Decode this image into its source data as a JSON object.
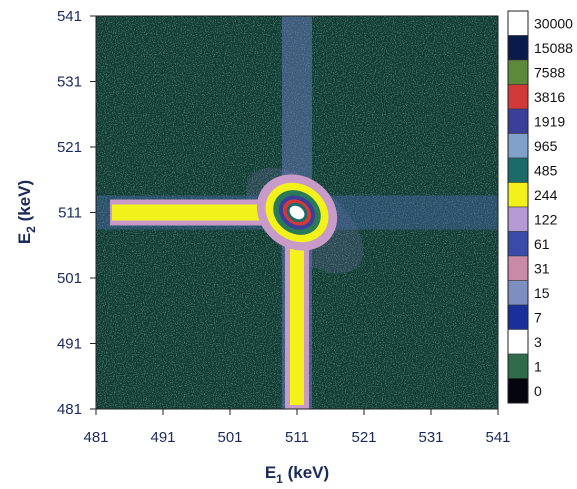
{
  "chart_data": {
    "type": "heatmap",
    "title": "",
    "xlabel": {
      "main": "E",
      "sub": "1",
      "unit": " (keV)"
    },
    "ylabel": {
      "main": "E",
      "sub": "2",
      "unit": " (keV)"
    },
    "xlim": [
      481,
      541
    ],
    "ylim": [
      481,
      541
    ],
    "x_ticks": [
      481,
      491,
      501,
      511,
      521,
      531,
      541
    ],
    "y_ticks": [
      481,
      491,
      501,
      511,
      521,
      531,
      541
    ],
    "grid": false,
    "colorbar": {
      "placement": "right",
      "levels": [
        "30000",
        "15088",
        "7588",
        "3816",
        "1919",
        "965",
        "485",
        "244",
        "122",
        "61",
        "31",
        "15",
        "7",
        "3",
        "1",
        "0"
      ],
      "colors": [
        "#ffffff",
        "#0a1a4a",
        "#5d8a3a",
        "#d23a3a",
        "#3b3f9a",
        "#7fa0c8",
        "#1a6b6a",
        "#f2f21a",
        "#b59ad6",
        "#3a4aa8",
        "#c98aa8",
        "#7d8fc0",
        "#1b2f9a",
        "#ffffff",
        "#2f6b4a",
        "#050510"
      ]
    },
    "features": [
      {
        "name": "peak",
        "x": 511,
        "y": 511
      },
      {
        "name": "horizontal ridge",
        "y": 511,
        "x_range": [
          481,
          541
        ]
      },
      {
        "name": "vertical ridge",
        "x": 511,
        "y_range": [
          481,
          541
        ]
      }
    ]
  }
}
